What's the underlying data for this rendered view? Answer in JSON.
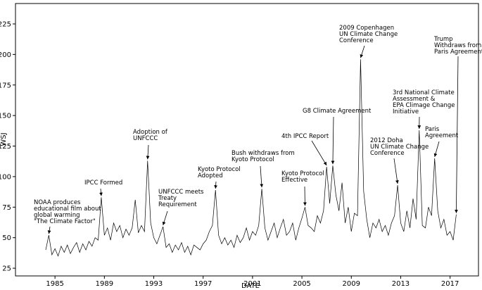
{
  "chart_data": {
    "type": "line",
    "x_label": "DATE",
    "y_label": "WSJ",
    "color": "#000000",
    "xlim": [
      1981.8,
      2019.3
    ],
    "ylim": [
      18.7,
      241.7
    ],
    "xticks": [
      1985,
      1989,
      1993,
      1997,
      2001,
      2005,
      2009,
      2013,
      2017
    ],
    "yticks": [
      25,
      50,
      75,
      100,
      125,
      150,
      175,
      200,
      225
    ],
    "x": [
      1984.25,
      1984.5,
      1984.75,
      1985,
      1985.25,
      1985.5,
      1985.75,
      1986,
      1986.25,
      1986.5,
      1986.75,
      1987,
      1987.25,
      1987.5,
      1987.75,
      1988,
      1988.25,
      1988.5,
      1988.75,
      1989,
      1989.25,
      1989.5,
      1989.75,
      1990,
      1990.25,
      1990.5,
      1990.75,
      1991,
      1991.25,
      1991.5,
      1991.75,
      1992,
      1992.25,
      1992.5,
      1992.75,
      1993,
      1993.25,
      1993.5,
      1993.75,
      1994,
      1994.25,
      1994.5,
      1994.75,
      1995,
      1995.25,
      1995.5,
      1995.75,
      1996,
      1996.25,
      1996.5,
      1996.75,
      1997,
      1997.25,
      1997.5,
      1997.75,
      1998,
      1998.25,
      1998.5,
      1998.75,
      1999,
      1999.25,
      1999.5,
      1999.75,
      2000,
      2000.25,
      2000.5,
      2000.75,
      2001,
      2001.25,
      2001.5,
      2001.75,
      2002,
      2002.25,
      2002.5,
      2002.75,
      2003,
      2003.25,
      2003.5,
      2003.75,
      2004,
      2004.25,
      2004.5,
      2004.75,
      2005,
      2005.25,
      2005.5,
      2005.75,
      2006,
      2006.25,
      2006.5,
      2006.75,
      2007,
      2007.25,
      2007.5,
      2007.75,
      2008,
      2008.25,
      2008.5,
      2008.75,
      2009,
      2009.25,
      2009.5,
      2009.75,
      2010,
      2010.25,
      2010.5,
      2010.75,
      2011,
      2011.25,
      2011.5,
      2011.75,
      2012,
      2012.25,
      2012.5,
      2012.75,
      2013,
      2013.25,
      2013.5,
      2013.75,
      2014,
      2014.25,
      2014.5,
      2014.75,
      2015,
      2015.25,
      2015.5,
      2015.75,
      2016,
      2016.25,
      2016.5,
      2016.75,
      2017,
      2017.25,
      2017.5
    ],
    "values": [
      40,
      52,
      36,
      41,
      35,
      43,
      38,
      44,
      37,
      42,
      46,
      38,
      45,
      40,
      47,
      43,
      50,
      48,
      83,
      52,
      58,
      48,
      62,
      55,
      60,
      50,
      57,
      52,
      58,
      81,
      54,
      60,
      55,
      113,
      62,
      50,
      45,
      52,
      59,
      42,
      45,
      38,
      44,
      40,
      46,
      38,
      43,
      36,
      44,
      42,
      40,
      45,
      48,
      55,
      60,
      89,
      52,
      45,
      50,
      44,
      48,
      42,
      52,
      46,
      50,
      58,
      48,
      55,
      52,
      60,
      90,
      58,
      48,
      55,
      62,
      50,
      58,
      65,
      52,
      55,
      62,
      48,
      58,
      66,
      75,
      60,
      58,
      55,
      68,
      62,
      72,
      108,
      78,
      109,
      85,
      72,
      95,
      62,
      75,
      55,
      70,
      68,
      196,
      88,
      65,
      50,
      62,
      58,
      65,
      55,
      60,
      52,
      62,
      68,
      93,
      62,
      55,
      72,
      58,
      82,
      65,
      138,
      60,
      58,
      75,
      68,
      115,
      72,
      58,
      65,
      52,
      55,
      48,
      69
    ],
    "annotations": [
      {
        "lines": [
          "NOAA produces",
          "educational film about",
          "global warming",
          "\"The Climate Factor\""
        ],
        "x": 1984.5,
        "y": 52
      },
      {
        "lines": [
          "IPCC Formed"
        ],
        "x": 1988.75,
        "y": 83
      },
      {
        "lines": [
          "Adoption of",
          "UNFCCC"
        ],
        "x": 1992.5,
        "y": 113
      },
      {
        "lines": [
          "UNFCCC meets",
          "Treaty",
          "Requirement"
        ],
        "x": 1993.75,
        "y": 59
      },
      {
        "lines": [
          "Kyoto Protocol",
          "Adopted"
        ],
        "x": 1998,
        "y": 89
      },
      {
        "lines": [
          "Bush withdraws from",
          "Kyoto Protocol"
        ],
        "x": 2001.75,
        "y": 90
      },
      {
        "lines": [
          "Kyoto Protocol",
          "Effective"
        ],
        "x": 2005.25,
        "y": 75
      },
      {
        "lines": [
          "4th IPCC Report"
        ],
        "x": 2007,
        "y": 108
      },
      {
        "lines": [
          "G8 Climate Agreement"
        ],
        "x": 2007.5,
        "y": 109
      },
      {
        "lines": [
          "2009 Copenhagen",
          "UN Climate Change",
          "Conference"
        ],
        "x": 2009.75,
        "y": 196
      },
      {
        "lines": [
          "2012 Doha",
          "UN Climate Change",
          "Conference"
        ],
        "x": 2012.75,
        "y": 93
      },
      {
        "lines": [
          "3rd National Climate",
          "Assessment &",
          "EPA Climage Change",
          "Initiative"
        ],
        "x": 2014.5,
        "y": 138
      },
      {
        "lines": [
          "Paris",
          "Agreement"
        ],
        "x": 2015.75,
        "y": 115
      },
      {
        "lines": [
          "Trump",
          "Withdraws from",
          "Paris Agreement"
        ],
        "x": 2017.5,
        "y": 69
      }
    ]
  }
}
